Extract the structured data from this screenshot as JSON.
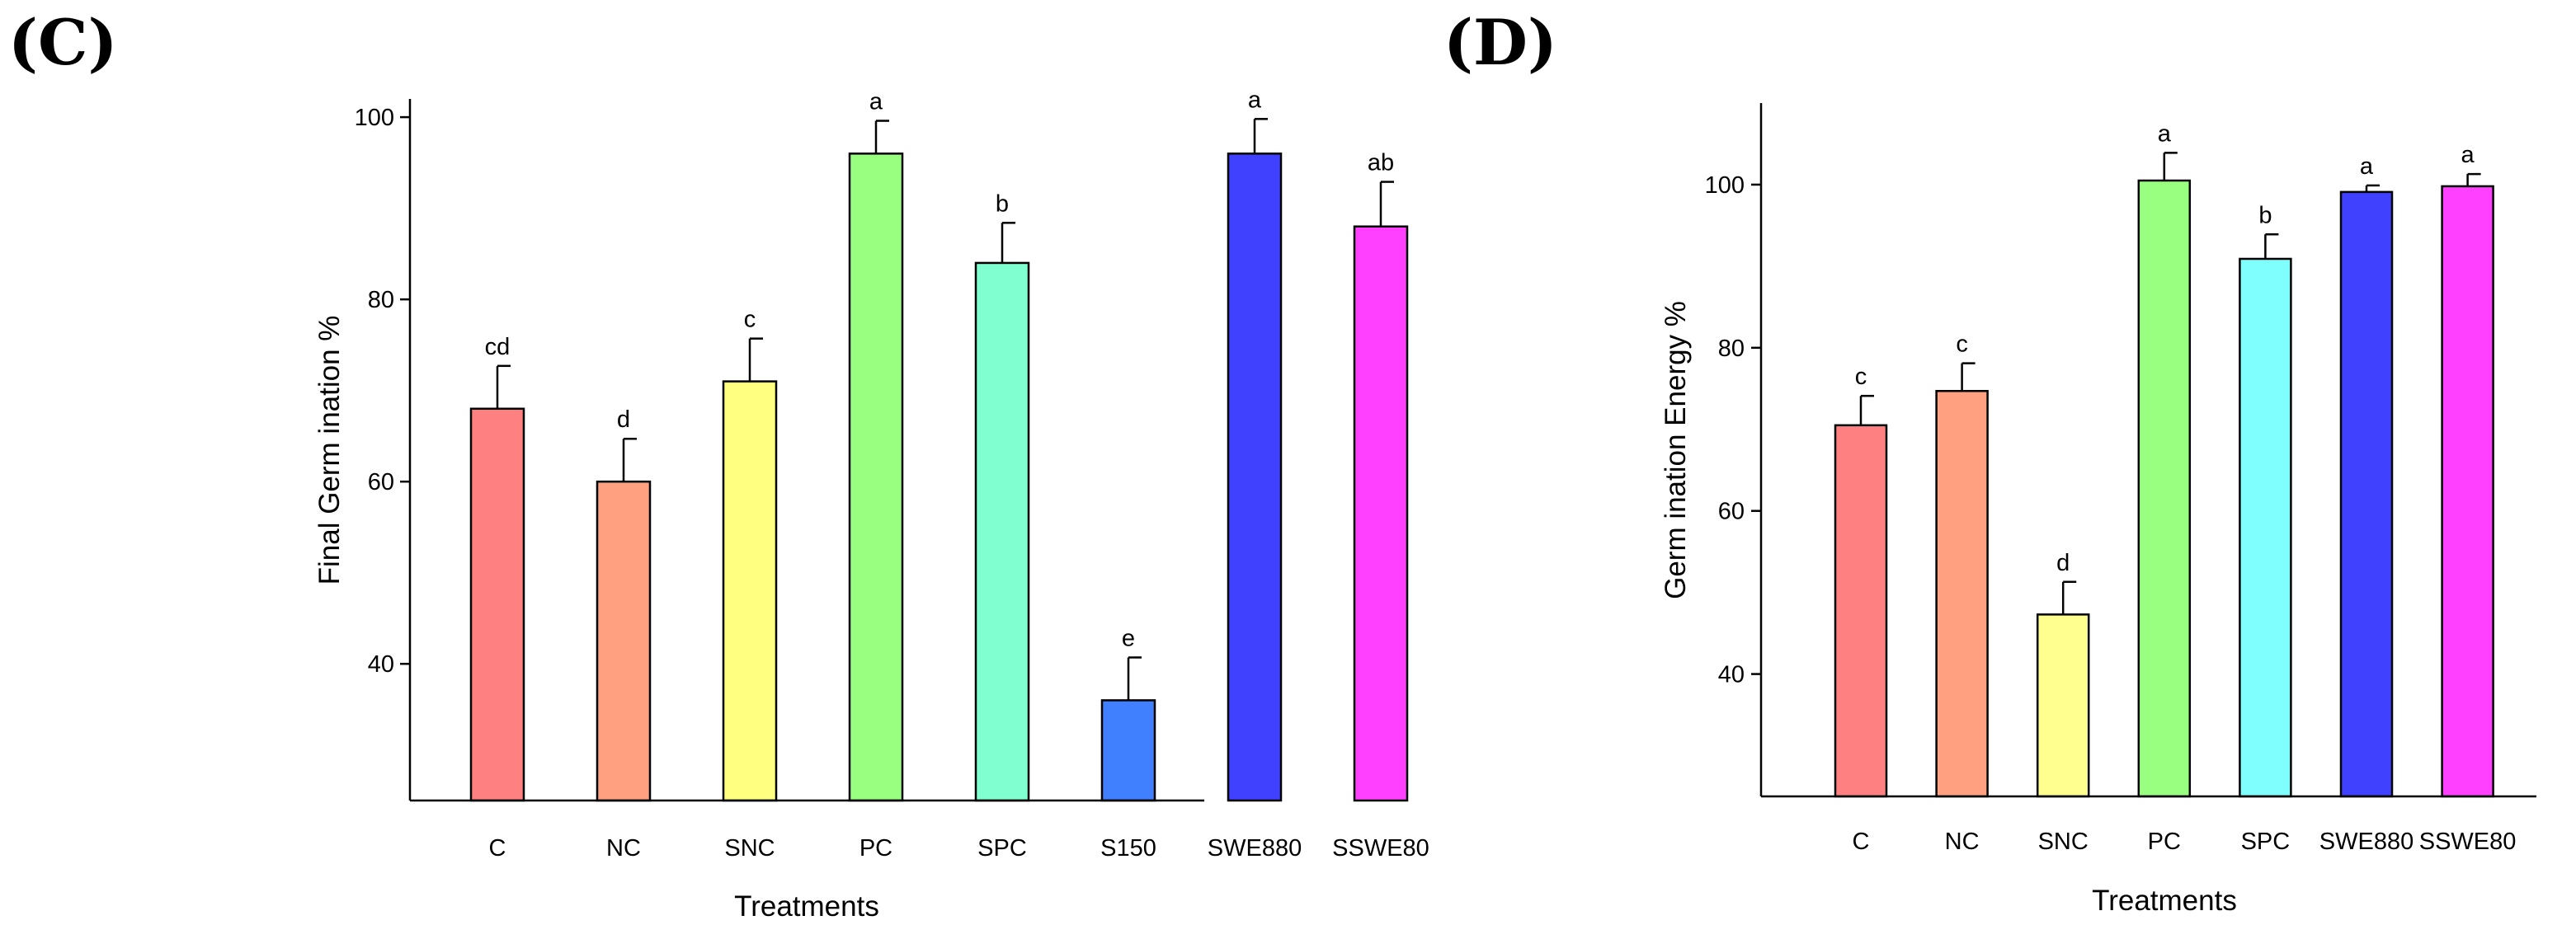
{
  "chart_data": [
    {
      "type": "bar",
      "panel_label": "(C)",
      "title": "",
      "xlabel": "Treatments",
      "ylabel": "Final Germ ination %",
      "ylim": [
        25,
        102
      ],
      "yticks": [
        40,
        60,
        80,
        100
      ],
      "categories": [
        "C",
        "NC",
        "SNC",
        "PC",
        "SPC",
        "S150",
        "SWE880",
        "SSWE80"
      ],
      "values": [
        68,
        60,
        71,
        96,
        84,
        36,
        96,
        88
      ],
      "errors": [
        4.7,
        4.7,
        4.7,
        3.6,
        4.4,
        4.7,
        3.8,
        4.9
      ],
      "significance": [
        "cd",
        "d",
        "c",
        "a",
        "b",
        "e",
        "a",
        "ab"
      ],
      "colors": [
        "#FF8080",
        "#FFA080",
        "#FFFF80",
        "#99FF80",
        "#80FFD0",
        "#4080FF",
        "#4040FF",
        "#FF40FF"
      ],
      "grid": false
    },
    {
      "type": "bar",
      "panel_label": "(D)",
      "title": "",
      "xlabel": "Treatments",
      "ylabel": "Germ ination Energy %",
      "ylim": [
        25,
        110
      ],
      "yticks": [
        40,
        60,
        80,
        100
      ],
      "categories": [
        "C",
        "NC",
        "SNC",
        "PC",
        "SPC",
        "SWE880",
        "SSWE80"
      ],
      "values": [
        70.5,
        74.7,
        47.3,
        100.5,
        90.9,
        99.1,
        99.8
      ],
      "errors": [
        3.6,
        3.4,
        4,
        3.4,
        3,
        0.8,
        1.5
      ],
      "significance": [
        "c",
        "c",
        "d",
        "a",
        "b",
        "a",
        "a"
      ],
      "colors": [
        "#FF8080",
        "#FFA080",
        "#FFFF90",
        "#99FF80",
        "#80FFFF",
        "#4040FF",
        "#FF40FF"
      ],
      "grid": false
    }
  ]
}
